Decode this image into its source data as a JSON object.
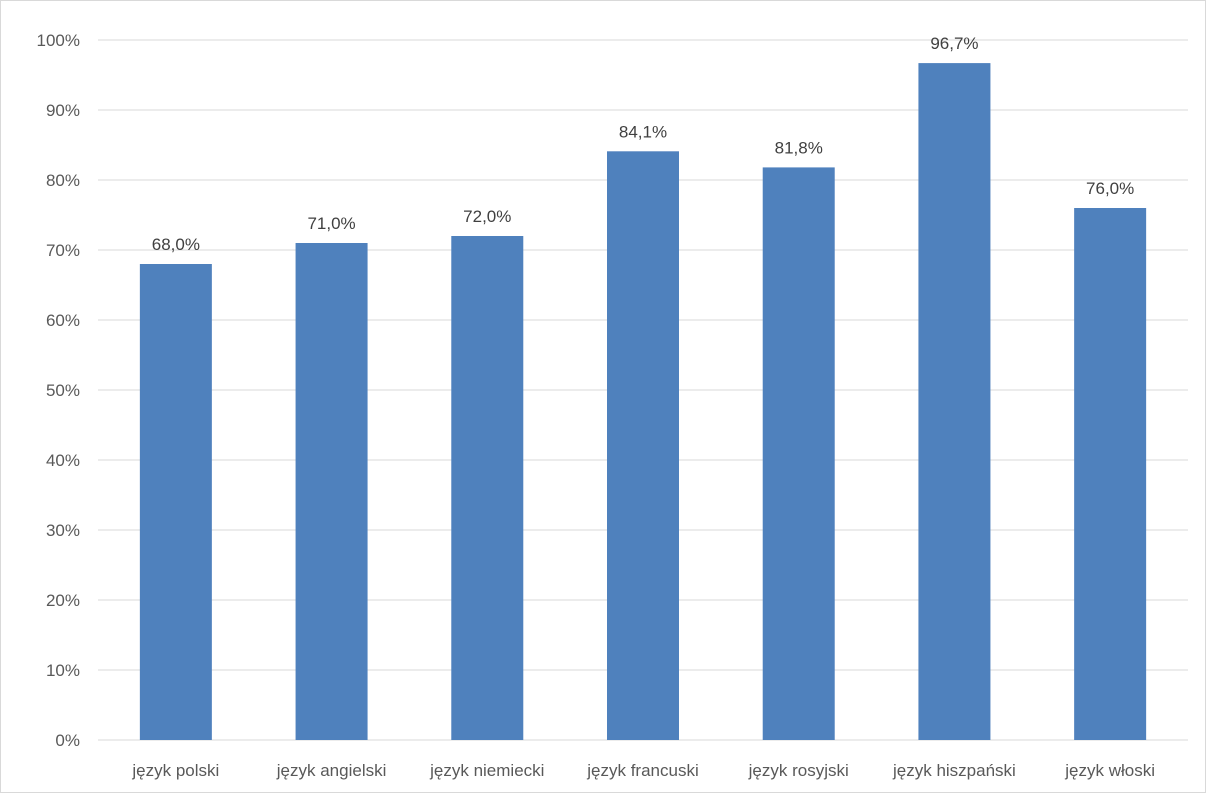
{
  "chart_data": {
    "type": "bar",
    "title": "",
    "xlabel": "",
    "ylabel": "",
    "categories": [
      "język polski",
      "język angielski",
      "język niemiecki",
      "język francuski",
      "język rosyjski",
      "język hiszpański",
      "język włoski"
    ],
    "values": [
      68.0,
      71.0,
      72.0,
      84.1,
      81.8,
      96.7,
      76.0
    ],
    "data_labels": [
      "68,0%",
      "71,0%",
      "72,0%",
      "84,1%",
      "81,8%",
      "96,7%",
      "76,0%"
    ],
    "ylim": [
      0,
      100
    ],
    "yticks": [
      0,
      10,
      20,
      30,
      40,
      50,
      60,
      70,
      80,
      90,
      100
    ],
    "ytick_labels": [
      "0%",
      "10%",
      "20%",
      "30%",
      "40%",
      "50%",
      "60%",
      "70%",
      "80%",
      "90%",
      "100%"
    ],
    "grid": true,
    "legend": "none",
    "colors": {
      "bar": "#4f81bd",
      "grid": "#d9d9d9",
      "tick_text": "#595959",
      "label_text": "#404040"
    }
  }
}
